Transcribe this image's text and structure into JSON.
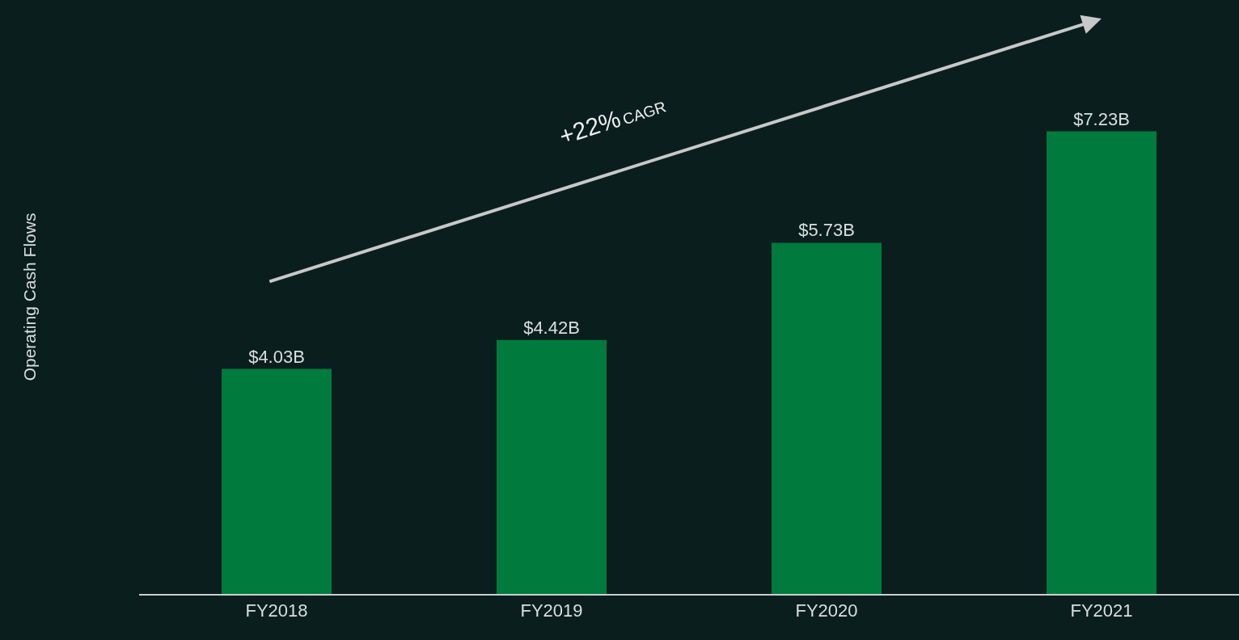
{
  "chart_data": {
    "type": "bar",
    "ylabel": "Operating Cash Flows",
    "categories": [
      "FY2018",
      "FY2019",
      "FY2020",
      "FY2021"
    ],
    "values": [
      4.03,
      4.42,
      5.73,
      7.23
    ],
    "value_labels": [
      "$4.03B",
      "$4.42B",
      "$5.73B",
      "$7.23B"
    ],
    "color": "#007a3d",
    "ylim": [
      1,
      9
    ],
    "tick_labels": "x",
    "grid": false,
    "legend": false,
    "annotations": [
      "+22% CAGR"
    ]
  }
}
